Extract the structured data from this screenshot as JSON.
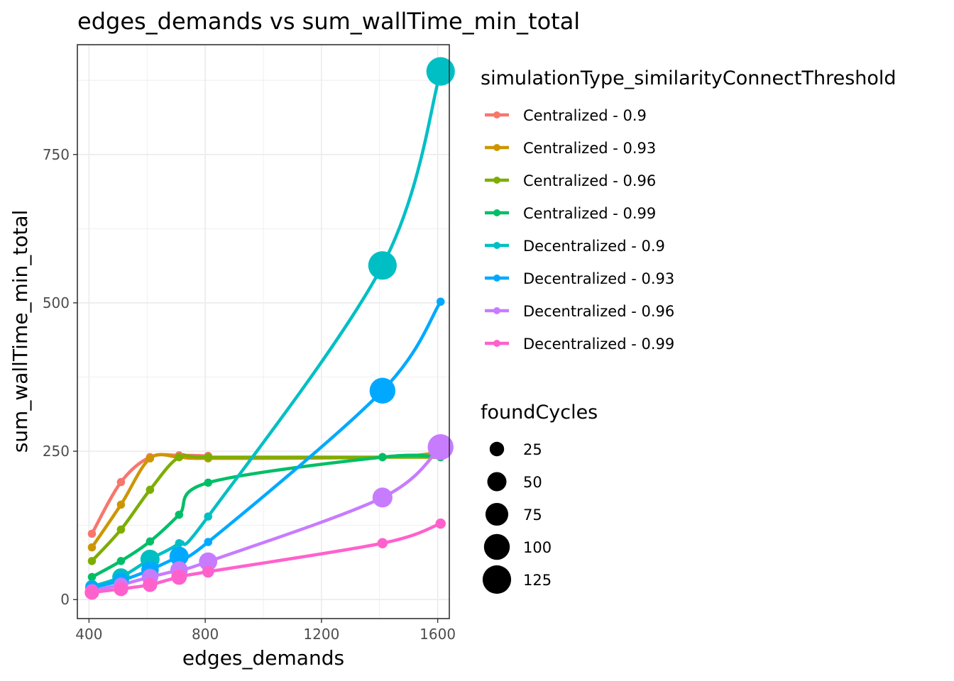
{
  "chart_data": {
    "type": "line",
    "title": "edges_demands  vs  sum_wallTime_min_total",
    "xlabel": "edges_demands",
    "ylabel": "sum_wallTime_min_total",
    "xlim": [
      360,
      1640
    ],
    "ylim": [
      -32,
      935
    ],
    "x_ticks": [
      400,
      800,
      1200,
      1600
    ],
    "y_ticks": [
      0,
      250,
      500,
      750
    ],
    "x_tick_labels": [
      "400",
      "800",
      "1200",
      "1600"
    ],
    "y_tick_labels": [
      "0",
      "250",
      "500",
      "750"
    ],
    "grid": true,
    "legend_placement": "right",
    "color_legend": {
      "title": "simulationType_similarityConnectThreshold"
    },
    "size_legend": {
      "title": "foundCycles",
      "entries": [
        {
          "label": "25",
          "value": 25
        },
        {
          "label": "50",
          "value": 50
        },
        {
          "label": "75",
          "value": 75
        },
        {
          "label": "100",
          "value": 100
        },
        {
          "label": "125",
          "value": 125
        }
      ]
    },
    "series": [
      {
        "name": "Centralized - 0.9",
        "color": "#F8766D",
        "x": [
          410,
          510,
          610,
          710,
          810
        ],
        "y": [
          111,
          198,
          240,
          243,
          242
        ],
        "cycles": [
          5,
          5,
          5,
          5,
          5
        ]
      },
      {
        "name": "Centralized - 0.93",
        "color": "#CD9600",
        "x": [
          410,
          510,
          610,
          710,
          810,
          1410,
          1610
        ],
        "y": [
          88,
          160,
          238,
          240,
          238,
          240,
          248
        ],
        "cycles": [
          5,
          5,
          5,
          5,
          5,
          5,
          5
        ]
      },
      {
        "name": "Centralized - 0.96",
        "color": "#7CAE00",
        "x": [
          410,
          510,
          610,
          710,
          810,
          1410,
          1610
        ],
        "y": [
          65,
          118,
          185,
          240,
          240,
          240,
          240
        ],
        "cycles": [
          5,
          5,
          5,
          5,
          5,
          5,
          5
        ]
      },
      {
        "name": "Centralized - 0.99",
        "color": "#00BE67",
        "x": [
          410,
          510,
          610,
          710,
          810,
          1410,
          1610
        ],
        "y": [
          38,
          65,
          98,
          143,
          197,
          240,
          240
        ],
        "cycles": [
          5,
          5,
          5,
          5,
          5,
          5,
          5
        ]
      },
      {
        "name": "Decentralized - 0.9",
        "color": "#00BFC4",
        "x": [
          410,
          510,
          610,
          710,
          810,
          1410,
          1610
        ],
        "y": [
          22,
          38,
          68,
          95,
          140,
          563,
          890
        ],
        "cycles": [
          20,
          40,
          50,
          5,
          5,
          125,
          125
        ]
      },
      {
        "name": "Decentralized - 0.93",
        "color": "#00A9FF",
        "x": [
          410,
          510,
          610,
          710,
          810,
          1410,
          1610
        ],
        "y": [
          20,
          32,
          50,
          73,
          97,
          352,
          502
        ],
        "cycles": [
          20,
          30,
          40,
          50,
          5,
          100,
          5
        ]
      },
      {
        "name": "Decentralized - 0.96",
        "color": "#C77CFF",
        "x": [
          410,
          510,
          610,
          710,
          810,
          1410,
          1610
        ],
        "y": [
          15,
          25,
          38,
          50,
          64,
          172,
          257
        ],
        "cycles": [
          20,
          25,
          35,
          40,
          45,
          55,
          100
        ]
      },
      {
        "name": "Decentralized - 0.99",
        "color": "#FF61CC",
        "x": [
          410,
          510,
          610,
          710,
          810,
          1410,
          1610
        ],
        "y": [
          12,
          18,
          25,
          38,
          47,
          95,
          128
        ],
        "cycles": [
          25,
          25,
          25,
          30,
          15,
          10,
          10
        ]
      }
    ]
  }
}
